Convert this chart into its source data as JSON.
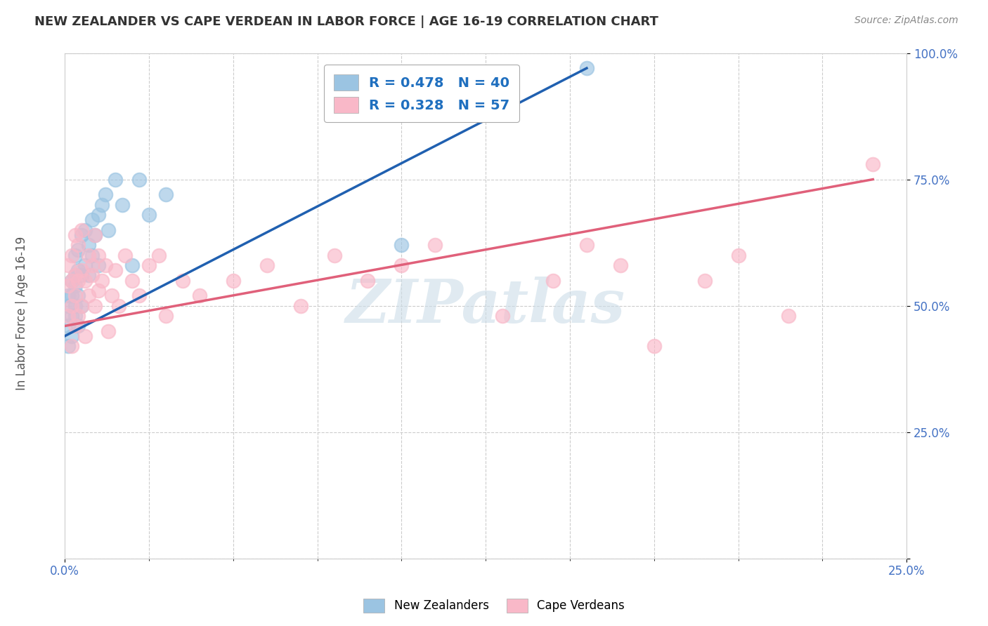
{
  "title": "NEW ZEALANDER VS CAPE VERDEAN IN LABOR FORCE | AGE 16-19 CORRELATION CHART",
  "source_text": "Source: ZipAtlas.com",
  "ylabel": "In Labor Force | Age 16-19",
  "legend_label1": "New Zealanders",
  "legend_label2": "Cape Verdeans",
  "R1": 0.478,
  "N1": 40,
  "R2": 0.328,
  "N2": 57,
  "xlim": [
    0.0,
    0.25
  ],
  "ylim": [
    0.0,
    1.0
  ],
  "yticks": [
    0.0,
    0.25,
    0.5,
    0.75,
    1.0
  ],
  "ytick_labels": [
    "",
    "25.0%",
    "50.0%",
    "75.0%",
    "100.0%"
  ],
  "color_nz": "#9bc4e2",
  "color_cv": "#f9b8c8",
  "trendline_color_nz": "#2060b0",
  "trendline_color_cv": "#e0607a",
  "background_color": "#ffffff",
  "grid_color": "#cccccc",
  "watermark_text": "ZIPatlas",
  "watermark_color": "#ccdde8",
  "nz_x": [
    0.001,
    0.001,
    0.001,
    0.001,
    0.002,
    0.002,
    0.002,
    0.002,
    0.003,
    0.003,
    0.003,
    0.003,
    0.003,
    0.004,
    0.004,
    0.004,
    0.004,
    0.005,
    0.005,
    0.005,
    0.006,
    0.006,
    0.007,
    0.007,
    0.008,
    0.008,
    0.009,
    0.01,
    0.01,
    0.011,
    0.012,
    0.013,
    0.015,
    0.017,
    0.02,
    0.022,
    0.025,
    0.03,
    0.1,
    0.155
  ],
  "nz_y": [
    0.46,
    0.5,
    0.52,
    0.42,
    0.48,
    0.52,
    0.55,
    0.44,
    0.5,
    0.54,
    0.56,
    0.48,
    0.6,
    0.52,
    0.57,
    0.61,
    0.46,
    0.5,
    0.56,
    0.64,
    0.58,
    0.65,
    0.56,
    0.62,
    0.6,
    0.67,
    0.64,
    0.58,
    0.68,
    0.7,
    0.72,
    0.65,
    0.75,
    0.7,
    0.58,
    0.75,
    0.68,
    0.72,
    0.62,
    0.97
  ],
  "cv_x": [
    0.001,
    0.001,
    0.001,
    0.002,
    0.002,
    0.002,
    0.002,
    0.003,
    0.003,
    0.003,
    0.003,
    0.004,
    0.004,
    0.004,
    0.005,
    0.005,
    0.005,
    0.006,
    0.006,
    0.007,
    0.007,
    0.008,
    0.008,
    0.009,
    0.009,
    0.01,
    0.01,
    0.011,
    0.012,
    0.013,
    0.014,
    0.015,
    0.016,
    0.018,
    0.02,
    0.022,
    0.025,
    0.028,
    0.03,
    0.035,
    0.04,
    0.05,
    0.06,
    0.07,
    0.08,
    0.09,
    0.1,
    0.11,
    0.13,
    0.145,
    0.155,
    0.165,
    0.175,
    0.19,
    0.2,
    0.215,
    0.24
  ],
  "cv_y": [
    0.48,
    0.54,
    0.58,
    0.42,
    0.5,
    0.55,
    0.6,
    0.46,
    0.52,
    0.56,
    0.64,
    0.48,
    0.55,
    0.62,
    0.5,
    0.57,
    0.65,
    0.44,
    0.55,
    0.52,
    0.6,
    0.58,
    0.56,
    0.5,
    0.64,
    0.53,
    0.6,
    0.55,
    0.58,
    0.45,
    0.52,
    0.57,
    0.5,
    0.6,
    0.55,
    0.52,
    0.58,
    0.6,
    0.48,
    0.55,
    0.52,
    0.55,
    0.58,
    0.5,
    0.6,
    0.55,
    0.58,
    0.62,
    0.48,
    0.55,
    0.62,
    0.58,
    0.42,
    0.55,
    0.6,
    0.48,
    0.78
  ],
  "nz_trend_x0": 0.0,
  "nz_trend_y0": 0.44,
  "nz_trend_x1": 0.155,
  "nz_trend_y1": 0.97,
  "cv_trend_x0": 0.0,
  "cv_trend_y0": 0.46,
  "cv_trend_x1": 0.24,
  "cv_trend_y1": 0.75
}
